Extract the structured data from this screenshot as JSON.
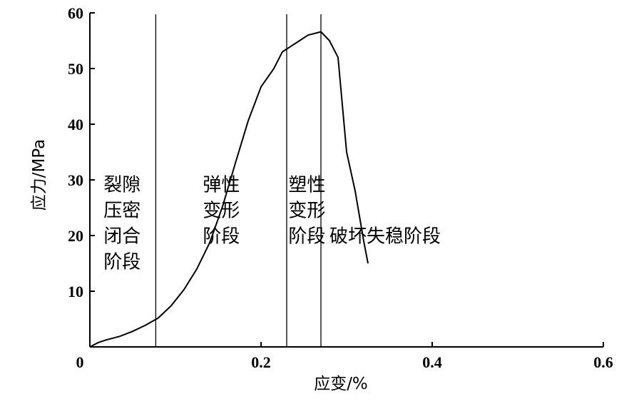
{
  "chart_data": {
    "type": "line",
    "xlabel": "应变/%",
    "ylabel": "应力/MPa",
    "xlim": [
      0,
      0.6
    ],
    "ylim": [
      0,
      60
    ],
    "x_ticks": [
      "0",
      "0.2",
      "0.4",
      "0.6"
    ],
    "y_ticks": [
      "10",
      "20",
      "30",
      "40",
      "50",
      "60"
    ],
    "grid": false,
    "series": [
      {
        "x": [
          0.0,
          0.01,
          0.02,
          0.035,
          0.05,
          0.065,
          0.08,
          0.095,
          0.11,
          0.125,
          0.14,
          0.155,
          0.17,
          0.185,
          0.2,
          0.215,
          0.225,
          0.235,
          0.245,
          0.255,
          0.265,
          0.27,
          0.28,
          0.29,
          0.3,
          0.31,
          0.32,
          0.325
        ],
        "y": [
          0.0,
          0.8,
          1.3,
          1.9,
          2.8,
          3.9,
          5.2,
          7.4,
          10.3,
          14.0,
          18.7,
          25.2,
          33.0,
          40.6,
          46.7,
          50.0,
          53.0,
          54.0,
          55.0,
          56.0,
          56.4,
          56.6,
          55.0,
          52.0,
          35.0,
          28.0,
          19.0,
          15.0
        ]
      }
    ],
    "vertical_lines": [
      0.077,
      0.23,
      0.27
    ],
    "stage_labels": [
      {
        "lines": [
          "裂隙",
          "压密",
          "闭合",
          "阶段"
        ],
        "x": 0.016,
        "y": 28
      },
      {
        "lines": [
          "弹性",
          "变形",
          "阶段"
        ],
        "x": 0.132,
        "y": 28
      },
      {
        "lines": [
          "塑性",
          "变形",
          "阶段"
        ],
        "x": 0.232,
        "y": 28
      },
      {
        "lines": [
          "破坏失稳阶段"
        ],
        "x": 0.28,
        "y": 18.8
      }
    ]
  }
}
